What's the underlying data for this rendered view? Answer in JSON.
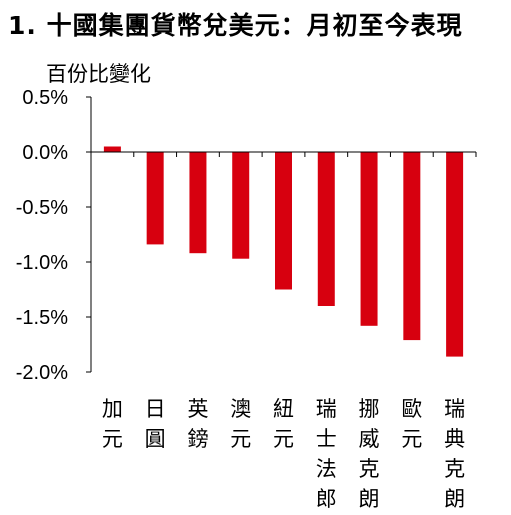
{
  "title": "1. 十國集團貨幣兌美元：月初至今表現",
  "chart_data": {
    "type": "bar",
    "title": "1. 十國集團貨幣兌美元：月初至今表現",
    "ylabel": "百份比變化",
    "xlabel": "",
    "categories": [
      "加元",
      "日圓",
      "英鎊",
      "澳元",
      "紐元",
      "瑞士法郎",
      "挪威克朗",
      "歐元",
      "瑞典克朗"
    ],
    "values": [
      0.05,
      -0.84,
      -0.92,
      -0.97,
      -1.25,
      -1.4,
      -1.58,
      -1.71,
      -1.86
    ],
    "ylim": [
      -2.0,
      0.5
    ],
    "yticks": [
      "0.5%",
      "0.0%",
      "-0.5%",
      "-1.0%",
      "-1.5%",
      "-2.0%"
    ],
    "ytick_values": [
      0.5,
      0.0,
      -0.5,
      -1.0,
      -1.5,
      -2.0
    ],
    "bar_color": "#d7000f",
    "axis_color": "#000000",
    "grid": false,
    "legend": "none"
  }
}
